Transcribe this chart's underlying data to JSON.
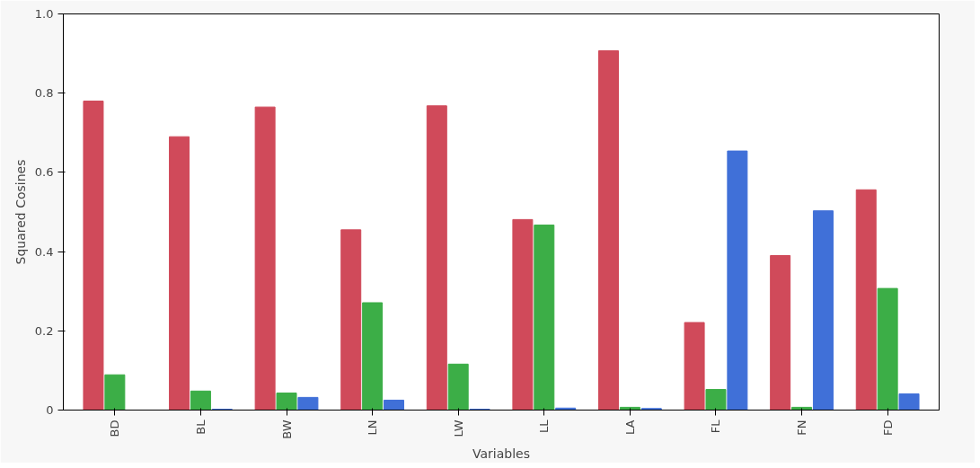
{
  "chart_data": {
    "type": "bar",
    "xlabel": "Variables",
    "ylabel": "Squared Cosines",
    "categories": [
      "BD",
      "BL",
      "BW",
      "LN",
      "LW",
      "LL",
      "LA",
      "FL",
      "FN",
      "FD"
    ],
    "series": [
      {
        "color": "#d04a5a",
        "values": [
          0.78,
          0.69,
          0.765,
          0.455,
          0.768,
          0.481,
          0.907,
          0.221,
          0.39,
          0.556
        ]
      },
      {
        "color": "#3cae47",
        "values": [
          0.089,
          0.048,
          0.043,
          0.271,
          0.116,
          0.467,
          0.007,
          0.052,
          0.007,
          0.307
        ]
      },
      {
        "color": "#4070d8",
        "values": [
          null,
          0.002,
          0.032,
          0.025,
          0.002,
          0.005,
          0.004,
          0.654,
          0.503,
          0.041
        ]
      }
    ],
    "ylim": [
      0,
      1.0
    ],
    "yticks": [
      0,
      0.2,
      0.4,
      0.6,
      0.8,
      {
        "value": 1.0,
        "label": "1.0"
      }
    ],
    "grid": false
  }
}
